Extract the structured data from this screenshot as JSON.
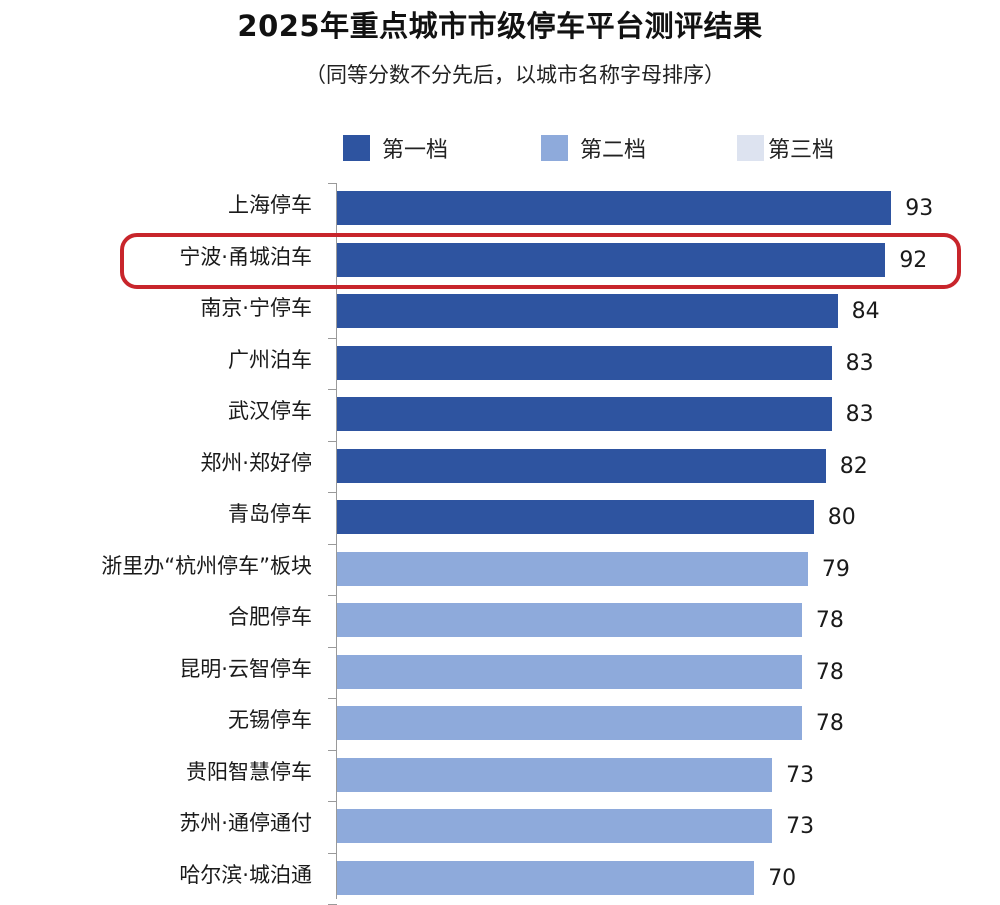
{
  "title": "2025年重点城市市级停车平台测评结果",
  "subtitle": "（同等分数不分先后，以城市名称字母排序）",
  "legend": [
    {
      "label": "第一档",
      "color": "#2e54a0"
    },
    {
      "label": "第二档",
      "color": "#8eaadb"
    },
    {
      "label": "第三档",
      "color": "#dde3f0"
    }
  ],
  "highlight": {
    "category": "宁波·甬城泊车",
    "color": "#c8252b"
  },
  "chart_data": {
    "type": "bar",
    "orientation": "horizontal",
    "title": "2025年重点城市市级停车平台测评结果",
    "subtitle": "（同等分数不分先后，以城市名称字母排序）",
    "xlabel": "",
    "ylabel": "",
    "xlim": [
      0,
      100
    ],
    "grid": false,
    "legend_position": "top",
    "data_labels": true,
    "categories": [
      "上海停车",
      "宁波·甬城泊车",
      "南京·宁停车",
      "广州泊车",
      "武汉停车",
      "郑州·郑好停",
      "青岛停车",
      "浙里办“杭州停车”板块",
      "合肥停车",
      "昆明·云智停车",
      "无锡停车",
      "贵阳智慧停车",
      "苏州·通停通付",
      "哈尔滨·城泊通"
    ],
    "values": [
      93,
      92,
      84,
      83,
      83,
      82,
      80,
      79,
      78,
      78,
      78,
      73,
      73,
      70
    ],
    "tiers": [
      "第一档",
      "第一档",
      "第一档",
      "第一档",
      "第一档",
      "第一档",
      "第一档",
      "第二档",
      "第二档",
      "第二档",
      "第二档",
      "第二档",
      "第二档",
      "第二档"
    ],
    "series": [
      {
        "name": "第一档",
        "color": "#2e54a0",
        "categories": [
          "上海停车",
          "宁波·甬城泊车",
          "南京·宁停车",
          "广州泊车",
          "武汉停车",
          "郑州·郑好停",
          "青岛停车"
        ],
        "values": [
          93,
          92,
          84,
          83,
          83,
          82,
          80
        ]
      },
      {
        "name": "第二档",
        "color": "#8eaadb",
        "categories": [
          "浙里办“杭州停车”板块",
          "合肥停车",
          "昆明·云智停车",
          "无锡停车",
          "贵阳智慧停车",
          "苏州·通停通付",
          "哈尔滨·城泊通"
        ],
        "values": [
          79,
          78,
          78,
          78,
          73,
          73,
          70
        ]
      },
      {
        "name": "第三档",
        "color": "#dde3f0",
        "categories": [],
        "values": []
      }
    ],
    "annotations": [
      {
        "type": "highlight-box",
        "target": "宁波·甬城泊车",
        "color": "#c8252b"
      }
    ]
  }
}
